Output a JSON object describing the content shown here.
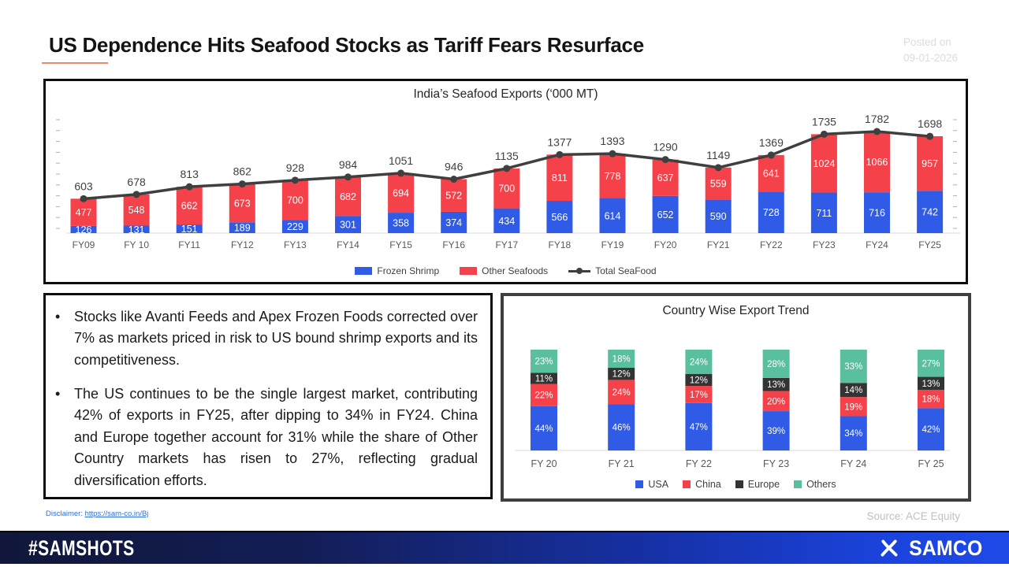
{
  "header": {
    "title": "US Dependence Hits Seafood Stocks as Tariff Fears Resurface",
    "posted_label": "Posted on",
    "posted_date": "09-01-2026"
  },
  "chart_data": [
    {
      "type": "bar",
      "subtype": "stacked-bar-with-total-line",
      "title": "India’s Seafood Exports (‘000 MT)",
      "categories": [
        "FY09",
        "FY 10",
        "FY11",
        "FY12",
        "FY13",
        "FY14",
        "FY15",
        "FY16",
        "FY17",
        "FY18",
        "FY19",
        "FY20",
        "FY21",
        "FY22",
        "FY23",
        "FY24",
        "FY25"
      ],
      "series": [
        {
          "name": "Frozen Shrimp",
          "color": "#2f5be7",
          "values": [
            126,
            131,
            151,
            189,
            229,
            301,
            358,
            374,
            434,
            566,
            614,
            652,
            590,
            728,
            711,
            716,
            742
          ]
        },
        {
          "name": "Other Seafoods",
          "color": "#f5424a",
          "values": [
            477,
            548,
            662,
            673,
            700,
            682,
            694,
            572,
            700,
            811,
            778,
            637,
            559,
            641,
            1024,
            1066,
            957
          ]
        }
      ],
      "line": {
        "name": "Total SeaFood",
        "color": "#3f3f3f",
        "values": [
          603,
          678,
          813,
          862,
          928,
          984,
          1051,
          946,
          1135,
          1377,
          1393,
          1290,
          1149,
          1369,
          1735,
          1782,
          1698
        ]
      },
      "y_axis": {
        "labels_visible": false,
        "tick_marks": true,
        "approx_max": 1900
      },
      "legend_position": "bottom"
    },
    {
      "type": "bar",
      "subtype": "stacked-bar-percent",
      "title": "Country Wise Export Trend",
      "unit": "%",
      "categories": [
        "FY 20",
        "FY 21",
        "FY 22",
        "FY 23",
        "FY 24",
        "FY 25"
      ],
      "series": [
        {
          "name": "USA",
          "color": "#2f5be7",
          "values": [
            44,
            46,
            47,
            39,
            34,
            42
          ]
        },
        {
          "name": "China",
          "color": "#f5424a",
          "values": [
            22,
            24,
            17,
            20,
            19,
            18
          ]
        },
        {
          "name": "Europe",
          "color": "#333333",
          "values": [
            11,
            12,
            12,
            13,
            14,
            13
          ]
        },
        {
          "name": "Others",
          "color": "#5abf9f",
          "values": [
            23,
            18,
            24,
            28,
            33,
            27
          ]
        }
      ],
      "legend_position": "bottom"
    }
  ],
  "insights": {
    "bullets": [
      "Stocks like Avanti Feeds and Apex Frozen Foods corrected over 7% as markets priced in risk to US bound shrimp exports and its competitiveness.",
      "The US continues to be the single largest market, contributing 42% of exports in FY25, after dipping to 34% in FY24. China and Europe together account for 31% while the share of Other Country markets has risen to 27%, reflecting gradual diversification efforts."
    ]
  },
  "footnotes": {
    "disclaimer_label": "Disclaimer:",
    "disclaimer_link": "https://sam-co.in/Bj",
    "source": "Source:  ACE Equity"
  },
  "footer": {
    "hashtag": "#SAMSHOTS",
    "brand": "SAMCO"
  }
}
